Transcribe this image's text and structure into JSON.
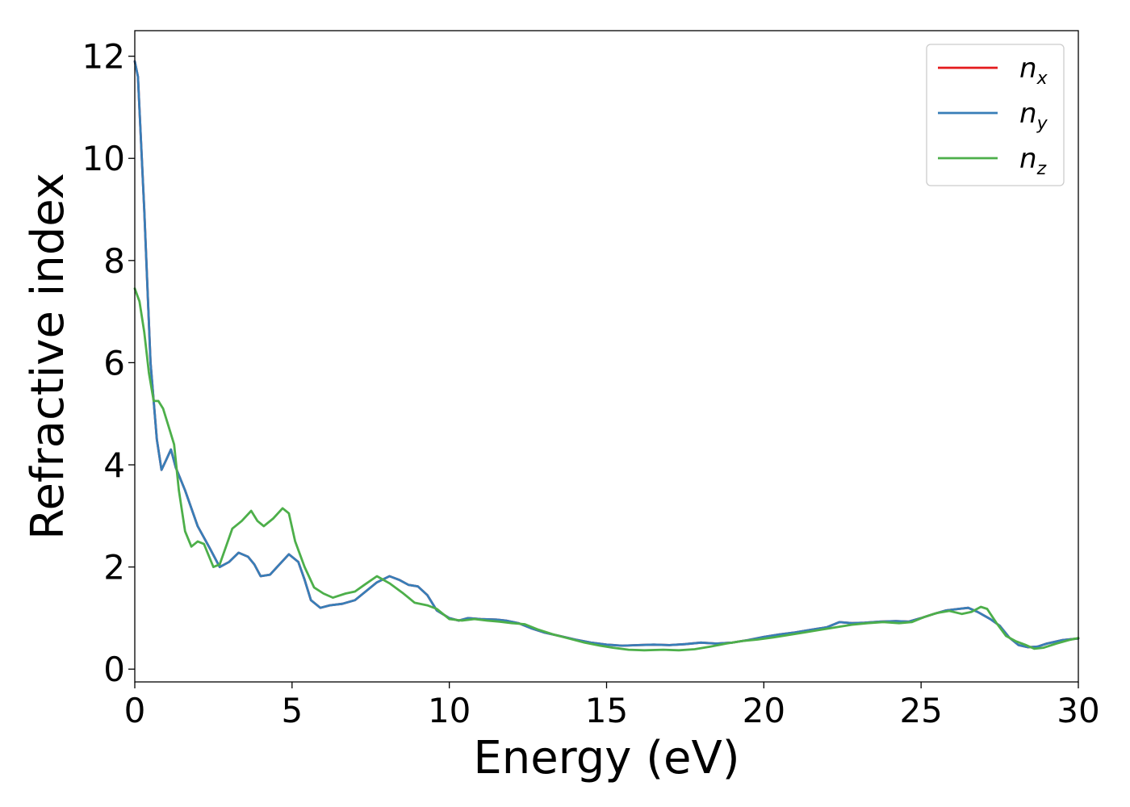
{
  "chart_data": {
    "type": "line",
    "title": "",
    "xlabel": "Energy (eV)",
    "ylabel": "Refractive index",
    "xlim": [
      0,
      30
    ],
    "ylim": [
      -0.25,
      12.5
    ],
    "xticks": [
      0,
      5,
      10,
      15,
      20,
      25,
      30
    ],
    "yticks": [
      0,
      2,
      4,
      6,
      8,
      10,
      12
    ],
    "grid": false,
    "legend_position": "top-right",
    "series": [
      {
        "name": "n_x",
        "legend_base": "n",
        "legend_sub": "x",
        "color": "#e41a1c",
        "points": [
          [
            0,
            11.9
          ],
          [
            0.1,
            11.6
          ],
          [
            0.3,
            9.0
          ],
          [
            0.5,
            6.0
          ],
          [
            0.7,
            4.5
          ],
          [
            0.85,
            3.9
          ],
          [
            1.0,
            4.1
          ],
          [
            1.15,
            4.3
          ],
          [
            1.3,
            3.95
          ],
          [
            1.6,
            3.5
          ],
          [
            2.0,
            2.8
          ],
          [
            2.4,
            2.35
          ],
          [
            2.7,
            2.0
          ],
          [
            3.0,
            2.1
          ],
          [
            3.3,
            2.28
          ],
          [
            3.6,
            2.2
          ],
          [
            3.8,
            2.05
          ],
          [
            4.0,
            1.82
          ],
          [
            4.3,
            1.85
          ],
          [
            4.6,
            2.05
          ],
          [
            4.9,
            2.25
          ],
          [
            5.2,
            2.1
          ],
          [
            5.4,
            1.75
          ],
          [
            5.6,
            1.35
          ],
          [
            5.9,
            1.2
          ],
          [
            6.2,
            1.25
          ],
          [
            6.6,
            1.28
          ],
          [
            7.0,
            1.35
          ],
          [
            7.3,
            1.5
          ],
          [
            7.7,
            1.7
          ],
          [
            8.1,
            1.82
          ],
          [
            8.4,
            1.75
          ],
          [
            8.7,
            1.65
          ],
          [
            9.0,
            1.62
          ],
          [
            9.3,
            1.45
          ],
          [
            9.6,
            1.15
          ],
          [
            10.0,
            1.0
          ],
          [
            10.3,
            0.95
          ],
          [
            10.6,
            1.0
          ],
          [
            11.0,
            0.98
          ],
          [
            11.5,
            0.97
          ],
          [
            11.8,
            0.95
          ],
          [
            12.2,
            0.9
          ],
          [
            12.6,
            0.8
          ],
          [
            13.0,
            0.72
          ],
          [
            13.5,
            0.65
          ],
          [
            14.0,
            0.58
          ],
          [
            14.5,
            0.52
          ],
          [
            15.0,
            0.48
          ],
          [
            15.5,
            0.46
          ],
          [
            16.0,
            0.47
          ],
          [
            16.5,
            0.48
          ],
          [
            17.0,
            0.47
          ],
          [
            17.5,
            0.49
          ],
          [
            18.0,
            0.52
          ],
          [
            18.5,
            0.5
          ],
          [
            19.0,
            0.52
          ],
          [
            19.5,
            0.57
          ],
          [
            20.0,
            0.63
          ],
          [
            20.5,
            0.68
          ],
          [
            21.0,
            0.72
          ],
          [
            21.5,
            0.77
          ],
          [
            22.0,
            0.82
          ],
          [
            22.4,
            0.92
          ],
          [
            22.8,
            0.9
          ],
          [
            23.2,
            0.91
          ],
          [
            23.7,
            0.93
          ],
          [
            24.2,
            0.94
          ],
          [
            24.6,
            0.93
          ],
          [
            25.0,
            1.0
          ],
          [
            25.4,
            1.08
          ],
          [
            25.8,
            1.15
          ],
          [
            26.2,
            1.18
          ],
          [
            26.5,
            1.2
          ],
          [
            26.8,
            1.12
          ],
          [
            27.2,
            0.98
          ],
          [
            27.5,
            0.85
          ],
          [
            27.8,
            0.62
          ],
          [
            28.1,
            0.47
          ],
          [
            28.4,
            0.43
          ],
          [
            28.7,
            0.44
          ],
          [
            29.0,
            0.5
          ],
          [
            29.5,
            0.57
          ],
          [
            30.0,
            0.6
          ]
        ]
      },
      {
        "name": "n_y",
        "legend_base": "n",
        "legend_sub": "y",
        "color": "#377eb8",
        "points": [
          [
            0,
            11.9
          ],
          [
            0.1,
            11.6
          ],
          [
            0.3,
            9.0
          ],
          [
            0.5,
            6.0
          ],
          [
            0.7,
            4.5
          ],
          [
            0.85,
            3.9
          ],
          [
            1.0,
            4.1
          ],
          [
            1.15,
            4.3
          ],
          [
            1.3,
            3.95
          ],
          [
            1.6,
            3.5
          ],
          [
            2.0,
            2.8
          ],
          [
            2.4,
            2.35
          ],
          [
            2.7,
            2.0
          ],
          [
            3.0,
            2.1
          ],
          [
            3.3,
            2.28
          ],
          [
            3.6,
            2.2
          ],
          [
            3.8,
            2.05
          ],
          [
            4.0,
            1.82
          ],
          [
            4.3,
            1.85
          ],
          [
            4.6,
            2.05
          ],
          [
            4.9,
            2.25
          ],
          [
            5.2,
            2.1
          ],
          [
            5.4,
            1.75
          ],
          [
            5.6,
            1.35
          ],
          [
            5.9,
            1.2
          ],
          [
            6.2,
            1.25
          ],
          [
            6.6,
            1.28
          ],
          [
            7.0,
            1.35
          ],
          [
            7.3,
            1.5
          ],
          [
            7.7,
            1.7
          ],
          [
            8.1,
            1.82
          ],
          [
            8.4,
            1.75
          ],
          [
            8.7,
            1.65
          ],
          [
            9.0,
            1.62
          ],
          [
            9.3,
            1.45
          ],
          [
            9.6,
            1.15
          ],
          [
            10.0,
            1.0
          ],
          [
            10.3,
            0.95
          ],
          [
            10.6,
            1.0
          ],
          [
            11.0,
            0.98
          ],
          [
            11.5,
            0.97
          ],
          [
            11.8,
            0.95
          ],
          [
            12.2,
            0.9
          ],
          [
            12.6,
            0.8
          ],
          [
            13.0,
            0.72
          ],
          [
            13.5,
            0.65
          ],
          [
            14.0,
            0.58
          ],
          [
            14.5,
            0.52
          ],
          [
            15.0,
            0.48
          ],
          [
            15.5,
            0.46
          ],
          [
            16.0,
            0.47
          ],
          [
            16.5,
            0.48
          ],
          [
            17.0,
            0.47
          ],
          [
            17.5,
            0.49
          ],
          [
            18.0,
            0.52
          ],
          [
            18.5,
            0.5
          ],
          [
            19.0,
            0.52
          ],
          [
            19.5,
            0.57
          ],
          [
            20.0,
            0.63
          ],
          [
            20.5,
            0.68
          ],
          [
            21.0,
            0.72
          ],
          [
            21.5,
            0.77
          ],
          [
            22.0,
            0.82
          ],
          [
            22.4,
            0.92
          ],
          [
            22.8,
            0.9
          ],
          [
            23.2,
            0.91
          ],
          [
            23.7,
            0.93
          ],
          [
            24.2,
            0.94
          ],
          [
            24.6,
            0.93
          ],
          [
            25.0,
            1.0
          ],
          [
            25.4,
            1.08
          ],
          [
            25.8,
            1.15
          ],
          [
            26.2,
            1.18
          ],
          [
            26.5,
            1.2
          ],
          [
            26.8,
            1.12
          ],
          [
            27.2,
            0.98
          ],
          [
            27.5,
            0.85
          ],
          [
            27.8,
            0.62
          ],
          [
            28.1,
            0.47
          ],
          [
            28.4,
            0.43
          ],
          [
            28.7,
            0.44
          ],
          [
            29.0,
            0.5
          ],
          [
            29.5,
            0.57
          ],
          [
            30.0,
            0.6
          ]
        ]
      },
      {
        "name": "n_z",
        "legend_base": "n",
        "legend_sub": "z",
        "color": "#4daf4a",
        "points": [
          [
            0,
            7.45
          ],
          [
            0.15,
            7.2
          ],
          [
            0.3,
            6.6
          ],
          [
            0.45,
            5.8
          ],
          [
            0.6,
            5.25
          ],
          [
            0.75,
            5.25
          ],
          [
            0.9,
            5.1
          ],
          [
            1.1,
            4.7
          ],
          [
            1.25,
            4.4
          ],
          [
            1.4,
            3.5
          ],
          [
            1.6,
            2.7
          ],
          [
            1.8,
            2.4
          ],
          [
            2.0,
            2.5
          ],
          [
            2.2,
            2.45
          ],
          [
            2.5,
            2.0
          ],
          [
            2.7,
            2.05
          ],
          [
            2.9,
            2.4
          ],
          [
            3.1,
            2.75
          ],
          [
            3.4,
            2.9
          ],
          [
            3.7,
            3.1
          ],
          [
            3.9,
            2.9
          ],
          [
            4.1,
            2.8
          ],
          [
            4.4,
            2.95
          ],
          [
            4.7,
            3.15
          ],
          [
            4.9,
            3.05
          ],
          [
            5.1,
            2.5
          ],
          [
            5.4,
            2.0
          ],
          [
            5.7,
            1.6
          ],
          [
            6.0,
            1.48
          ],
          [
            6.3,
            1.4
          ],
          [
            6.7,
            1.48
          ],
          [
            7.0,
            1.52
          ],
          [
            7.3,
            1.65
          ],
          [
            7.7,
            1.82
          ],
          [
            8.1,
            1.68
          ],
          [
            8.5,
            1.5
          ],
          [
            8.9,
            1.3
          ],
          [
            9.3,
            1.25
          ],
          [
            9.6,
            1.18
          ],
          [
            10.0,
            0.98
          ],
          [
            10.4,
            0.95
          ],
          [
            10.8,
            0.98
          ],
          [
            11.2,
            0.95
          ],
          [
            11.6,
            0.93
          ],
          [
            12.0,
            0.9
          ],
          [
            12.4,
            0.88
          ],
          [
            12.8,
            0.78
          ],
          [
            13.3,
            0.68
          ],
          [
            13.8,
            0.6
          ],
          [
            14.3,
            0.52
          ],
          [
            14.8,
            0.46
          ],
          [
            15.2,
            0.42
          ],
          [
            15.7,
            0.38
          ],
          [
            16.2,
            0.37
          ],
          [
            16.8,
            0.38
          ],
          [
            17.3,
            0.37
          ],
          [
            17.8,
            0.39
          ],
          [
            18.3,
            0.44
          ],
          [
            18.8,
            0.5
          ],
          [
            19.3,
            0.55
          ],
          [
            19.8,
            0.58
          ],
          [
            20.3,
            0.62
          ],
          [
            20.8,
            0.67
          ],
          [
            21.3,
            0.72
          ],
          [
            21.8,
            0.77
          ],
          [
            22.3,
            0.82
          ],
          [
            22.8,
            0.87
          ],
          [
            23.3,
            0.9
          ],
          [
            23.8,
            0.92
          ],
          [
            24.3,
            0.9
          ],
          [
            24.7,
            0.92
          ],
          [
            25.1,
            1.02
          ],
          [
            25.5,
            1.1
          ],
          [
            25.9,
            1.14
          ],
          [
            26.3,
            1.08
          ],
          [
            26.6,
            1.12
          ],
          [
            26.9,
            1.22
          ],
          [
            27.1,
            1.18
          ],
          [
            27.4,
            0.9
          ],
          [
            27.7,
            0.65
          ],
          [
            28.0,
            0.55
          ],
          [
            28.3,
            0.48
          ],
          [
            28.6,
            0.4
          ],
          [
            28.9,
            0.42
          ],
          [
            29.3,
            0.5
          ],
          [
            29.7,
            0.57
          ],
          [
            30.0,
            0.61
          ]
        ]
      }
    ]
  }
}
